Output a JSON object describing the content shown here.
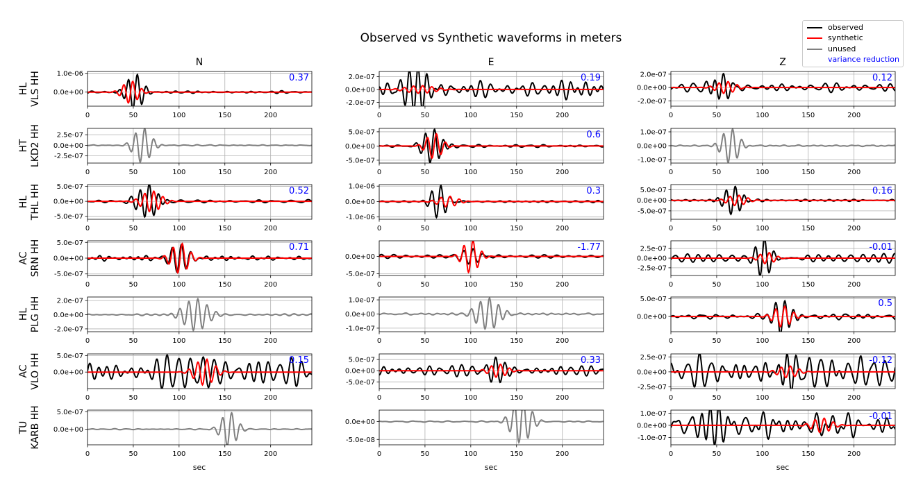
{
  "title": "Observed vs Synthetic waveforms in meters",
  "columns": [
    "N",
    "E",
    "Z"
  ],
  "xlabel": "sec",
  "legend": {
    "observed": "observed",
    "synthetic": "synthetic",
    "unused": "unused",
    "variance_reduction": "variance reduction"
  },
  "colors": {
    "observed": "#000000",
    "synthetic": "#ff0000",
    "unused": "#808080",
    "vr": "#0000ff",
    "grid": "#b0b0b0"
  },
  "chart_data": {
    "type": "line",
    "xlim": [
      0,
      245
    ],
    "xticks": [
      0,
      50,
      100,
      150,
      200
    ],
    "stations": [
      {
        "net": "HL",
        "sta": "VLS HH"
      },
      {
        "net": "HT",
        "sta": "LKD2 HH"
      },
      {
        "net": "HL",
        "sta": "THL HH"
      },
      {
        "net": "AC",
        "sta": "SRN HH"
      },
      {
        "net": "HL",
        "sta": "PLG HH"
      },
      {
        "net": "AC",
        "sta": "VLO HH"
      },
      {
        "net": "TU",
        "sta": "KARB HH"
      }
    ],
    "panels": [
      [
        {
          "ticks": [
            "1.0e-06",
            "0.0e+00"
          ],
          "tickvals": [
            1e-06,
            0
          ],
          "ylim": [
            -7.5e-07,
            1.1e-06
          ],
          "vr": "0.37",
          "used": true,
          "obs": {
            "amp": 1e-06,
            "center": 52,
            "width": 8,
            "freq": 0.1,
            "noise": 0.05
          },
          "syn": {
            "amp": 6e-07,
            "center": 47,
            "width": 8,
            "freq": 0.1
          }
        },
        {
          "ticks": [
            "2.0e-07",
            "0.0e+00",
            "-2.0e-07"
          ],
          "tickvals": [
            2e-07,
            0,
            -2e-07
          ],
          "ylim": [
            -2.6e-07,
            2.8e-07
          ],
          "vr": "0.19",
          "used": true,
          "obs": {
            "amp": 2.5e-07,
            "center": 40,
            "width": 10,
            "freq": 0.1,
            "noise": 0.45
          },
          "syn": {
            "amp": 6e-08,
            "center": 45,
            "width": 15,
            "freq": 0.1
          }
        },
        {
          "ticks": [
            "2.0e-07",
            "0.0e+00",
            "-2.0e-07"
          ],
          "tickvals": [
            2e-07,
            0,
            -2e-07
          ],
          "ylim": [
            -2.8e-07,
            2.4e-07
          ],
          "vr": "0.12",
          "used": true,
          "obs": {
            "amp": 2.3e-07,
            "center": 55,
            "width": 9,
            "freq": 0.1,
            "noise": 0.22
          },
          "syn": {
            "amp": 9e-08,
            "center": 60,
            "width": 10,
            "freq": 0.1
          }
        }
      ],
      [
        {
          "ticks": [
            "2.5e-07",
            "0.0e+00",
            "-2.5e-07"
          ],
          "tickvals": [
            2.5e-07,
            0,
            -2.5e-07
          ],
          "ylim": [
            -4.2e-07,
            4e-07
          ],
          "vr": "",
          "used": false,
          "obs": {
            "amp": 4e-07,
            "center": 60,
            "width": 9,
            "freq": 0.1,
            "noise": 0.02
          },
          "syn": {
            "amp": 0,
            "center": 60,
            "width": 9,
            "freq": 0.1
          }
        },
        {
          "ticks": [
            "5.0e-07",
            "0.0e+00",
            "-5.0e-07"
          ],
          "tickvals": [
            5e-07,
            0,
            -5e-07
          ],
          "ylim": [
            -6e-07,
            6.2e-07
          ],
          "vr": "0.6",
          "used": true,
          "obs": {
            "amp": 6e-07,
            "center": 58,
            "width": 9,
            "freq": 0.1,
            "noise": 0.1
          },
          "syn": {
            "amp": 4.5e-07,
            "center": 60,
            "width": 8,
            "freq": 0.1
          }
        },
        {
          "ticks": [
            "1.0e-07",
            "0.0e+00",
            "-1.0e-07"
          ],
          "tickvals": [
            1e-07,
            0,
            -1e-07
          ],
          "ylim": [
            -1.25e-07,
            1.25e-07
          ],
          "vr": "",
          "used": false,
          "obs": {
            "amp": 1.2e-07,
            "center": 65,
            "width": 9,
            "freq": 0.1,
            "noise": 0.05
          },
          "syn": {
            "amp": 0,
            "center": 65,
            "width": 9,
            "freq": 0.1
          }
        }
      ],
      [
        {
          "ticks": [
            "5.0e-07",
            "0.0e+00",
            "-5.0e-07"
          ],
          "tickvals": [
            5e-07,
            0,
            -5e-07
          ],
          "ylim": [
            -6e-07,
            5.6e-07
          ],
          "vr": "0.52",
          "used": true,
          "obs": {
            "amp": 5.5e-07,
            "center": 65,
            "width": 10,
            "freq": 0.1,
            "noise": 0.08
          },
          "syn": {
            "amp": 3.5e-07,
            "center": 70,
            "width": 10,
            "freq": 0.1
          }
        },
        {
          "ticks": [
            "1.0e-06",
            "0.0e+00",
            "-1.0e-06"
          ],
          "tickvals": [
            1e-06,
            0,
            -1e-06
          ],
          "ylim": [
            -1.15e-06,
            1.1e-06
          ],
          "vr": "0.3",
          "used": true,
          "obs": {
            "amp": 1.1e-06,
            "center": 65,
            "width": 8,
            "freq": 0.1,
            "noise": 0.05
          },
          "syn": {
            "amp": 3.5e-07,
            "center": 75,
            "width": 10,
            "freq": 0.1
          }
        },
        {
          "ticks": [
            "5.0e-07",
            "0.0e+00",
            "-5.0e-07"
          ],
          "tickvals": [
            5e-07,
            0,
            -5e-07
          ],
          "ylim": [
            -9e-07,
            7.5e-07
          ],
          "vr": "0.16",
          "used": true,
          "obs": {
            "amp": 7e-07,
            "center": 68,
            "width": 9,
            "freq": 0.1,
            "noise": 0.05
          },
          "syn": {
            "amp": 2.5e-07,
            "center": 72,
            "width": 10,
            "freq": 0.1
          }
        }
      ],
      [
        {
          "ticks": [
            "5.0e-07",
            "0.0e+00",
            "-5.0e-07"
          ],
          "tickvals": [
            5e-07,
            0,
            -5e-07
          ],
          "ylim": [
            -5.5e-07,
            5.5e-07
          ],
          "vr": "0.71",
          "used": true,
          "obs": {
            "amp": 5e-07,
            "center": 100,
            "width": 9,
            "freq": 0.1,
            "noise": 0.1
          },
          "syn": {
            "amp": 4.8e-07,
            "center": 101,
            "width": 9,
            "freq": 0.1
          }
        },
        {
          "ticks": [
            "0.0e+00",
            "-5.0e-07"
          ],
          "tickvals": [
            0,
            -5e-07
          ],
          "ylim": [
            -5.5e-07,
            4.5e-07
          ],
          "vr": "-1.77",
          "used": true,
          "obs": {
            "amp": 2e-07,
            "center": 100,
            "width": 10,
            "freq": 0.1,
            "noise": 0.2
          },
          "syn": {
            "amp": 4.8e-07,
            "center": 100,
            "width": 8,
            "freq": 0.1
          }
        },
        {
          "ticks": [
            "2.5e-07",
            "0.0e+00",
            "-2.5e-07"
          ],
          "tickvals": [
            2.5e-07,
            0,
            -2.5e-07
          ],
          "ylim": [
            -4.5e-07,
            4.5e-07
          ],
          "vr": "-0.01",
          "used": true,
          "obs": {
            "amp": 4.5e-07,
            "center": 100,
            "width": 8,
            "freq": 0.1,
            "noise": 0.22
          },
          "syn": {
            "amp": 1.5e-07,
            "center": 105,
            "width": 8,
            "freq": 0.1
          }
        }
      ],
      [
        {
          "ticks": [
            "2.0e-07",
            "0.0e+00",
            "-2.0e-07"
          ],
          "tickvals": [
            2e-07,
            0,
            -2e-07
          ],
          "ylim": [
            -2.4e-07,
            2.5e-07
          ],
          "vr": "",
          "used": false,
          "obs": {
            "amp": 2.3e-07,
            "center": 118,
            "width": 12,
            "freq": 0.1,
            "noise": 0.05
          },
          "syn": {
            "amp": 0,
            "center": 118,
            "width": 12,
            "freq": 0.1
          }
        },
        {
          "ticks": [
            "1.0e-07",
            "0.0e+00",
            "-1.0e-07"
          ],
          "tickvals": [
            1e-07,
            0,
            -1e-07
          ],
          "ylim": [
            -1.25e-07,
            1.2e-07
          ],
          "vr": "",
          "used": false,
          "obs": {
            "amp": 1.1e-07,
            "center": 118,
            "width": 12,
            "freq": 0.1,
            "noise": 0.05
          },
          "syn": {
            "amp": 0,
            "center": 118,
            "width": 12,
            "freq": 0.1
          }
        },
        {
          "ticks": [
            "5.0e-07",
            "0.0e+00"
          ],
          "tickvals": [
            5e-07,
            0
          ],
          "ylim": [
            -4.3e-07,
            5.5e-07
          ],
          "vr": "0.5",
          "used": true,
          "obs": {
            "amp": 5e-07,
            "center": 122,
            "width": 9,
            "freq": 0.1,
            "noise": 0.12
          },
          "syn": {
            "amp": 3e-07,
            "center": 122,
            "width": 9,
            "freq": 0.1
          }
        }
      ],
      [
        {
          "ticks": [
            "5.0e-07",
            "0.0e+00"
          ],
          "tickvals": [
            5e-07,
            0
          ],
          "ylim": [
            -5e-07,
            5.5e-07
          ],
          "vr": "0.15",
          "used": true,
          "obs": {
            "amp": 4e-07,
            "center": 125,
            "width": 10,
            "freq": 0.1,
            "noise": 0.9
          },
          "syn": {
            "amp": 4e-07,
            "center": 128,
            "width": 10,
            "freq": 0.1
          }
        },
        {
          "ticks": [
            "5.0e-07",
            "0.0e+00",
            "-5.0e-07"
          ],
          "tickvals": [
            5e-07,
            0,
            -5e-07
          ],
          "ylim": [
            -8e-07,
            7.5e-07
          ],
          "vr": "0.33",
          "used": true,
          "obs": {
            "amp": 7e-07,
            "center": 125,
            "width": 9,
            "freq": 0.1,
            "noise": 0.3
          },
          "syn": {
            "amp": 3e-07,
            "center": 130,
            "width": 9,
            "freq": 0.1
          }
        },
        {
          "ticks": [
            "2.5e-07",
            "0.0e+00",
            "-2.5e-07"
          ],
          "tickvals": [
            2.5e-07,
            0,
            -2.5e-07
          ],
          "ylim": [
            -2.8e-07,
            3e-07
          ],
          "vr": "-0.12",
          "used": true,
          "obs": {
            "amp": 2.7e-07,
            "center": 125,
            "width": 9,
            "freq": 0.1,
            "noise": 0.7
          },
          "syn": {
            "amp": 1e-07,
            "center": 128,
            "width": 10,
            "freq": 0.1
          }
        }
      ],
      [
        {
          "ticks": [
            "5.0e-07",
            "0.0e+00"
          ],
          "tickvals": [
            5e-07,
            0
          ],
          "ylim": [
            -4.5e-07,
            5.5e-07
          ],
          "vr": "",
          "used": false,
          "obs": {
            "amp": 5e-07,
            "center": 155,
            "width": 8,
            "freq": 0.1,
            "noise": 0.02
          },
          "syn": {
            "amp": 0,
            "center": 155,
            "width": 8,
            "freq": 0.1
          }
        },
        {
          "ticks": [
            "0.0e+00",
            "-5.0e-08"
          ],
          "tickvals": [
            0,
            -5e-08
          ],
          "ylim": [
            -6.5e-08,
            3.2e-08
          ],
          "vr": "",
          "used": false,
          "obs": {
            "amp": 6e-08,
            "center": 155,
            "width": 10,
            "freq": 0.1,
            "noise": 0.03
          },
          "syn": {
            "amp": 0,
            "center": 155,
            "width": 10,
            "freq": 0.1
          }
        },
        {
          "ticks": [
            "1.0e-07",
            "0.0e+00",
            "-1.0e-07"
          ],
          "tickvals": [
            1e-07,
            0,
            -1e-07
          ],
          "ylim": [
            -1.6e-07,
            1.25e-07
          ],
          "vr": "-0.01",
          "used": true,
          "obs": {
            "amp": 1.2e-07,
            "center": 50,
            "width": 12,
            "freq": 0.1,
            "noise": 0.7
          },
          "syn": {
            "amp": 6e-08,
            "center": 165,
            "width": 10,
            "freq": 0.1
          }
        }
      ]
    ]
  }
}
